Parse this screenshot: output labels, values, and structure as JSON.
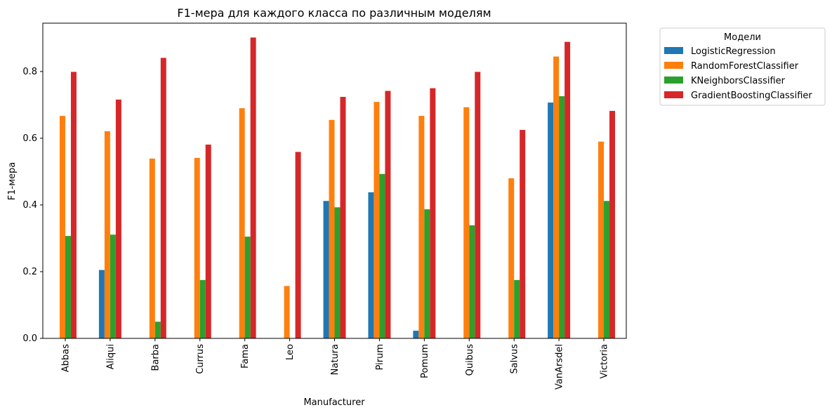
{
  "chart_data": {
    "type": "bar",
    "title": "F1-мера для каждого класса по различным моделям",
    "xlabel": "Manufacturer",
    "ylabel": "F1-мера",
    "ylim": [
      0,
      0.945
    ],
    "yticks": [
      0.0,
      0.2,
      0.4,
      0.6,
      0.8
    ],
    "ytick_labels": [
      "0.0",
      "0.2",
      "0.4",
      "0.6",
      "0.8"
    ],
    "grid": false,
    "legend": {
      "title": "Модели",
      "placement": "outside-top-right"
    },
    "categories": [
      "Abbas",
      "Aliqui",
      "Barba",
      "Currus",
      "Fama",
      "Leo",
      "Natura",
      "Pirum",
      "Pomum",
      "Quibus",
      "Salvus",
      "VanArsdel",
      "Victoria"
    ],
    "series": [
      {
        "name": "LogisticRegression",
        "color": "#1f77b4",
        "values": [
          0.0,
          0.205,
          0.0,
          0.0,
          0.0,
          0.0,
          0.412,
          0.438,
          0.023,
          0.0,
          0.0,
          0.707,
          0.0
        ]
      },
      {
        "name": "RandomForestClassifier",
        "color": "#ff7f0e",
        "values": [
          0.667,
          0.621,
          0.539,
          0.541,
          0.69,
          0.157,
          0.655,
          0.709,
          0.667,
          0.693,
          0.48,
          0.845,
          0.59
        ]
      },
      {
        "name": "KNeighborsClassifier",
        "color": "#2ca02c",
        "values": [
          0.307,
          0.311,
          0.05,
          0.175,
          0.305,
          0.0,
          0.393,
          0.493,
          0.387,
          0.339,
          0.175,
          0.726,
          0.412
        ]
      },
      {
        "name": "GradientBoostingClassifier",
        "color": "#d62728",
        "values": [
          0.799,
          0.716,
          0.841,
          0.581,
          0.902,
          0.559,
          0.724,
          0.742,
          0.75,
          0.799,
          0.625,
          0.889,
          0.682
        ]
      }
    ]
  }
}
